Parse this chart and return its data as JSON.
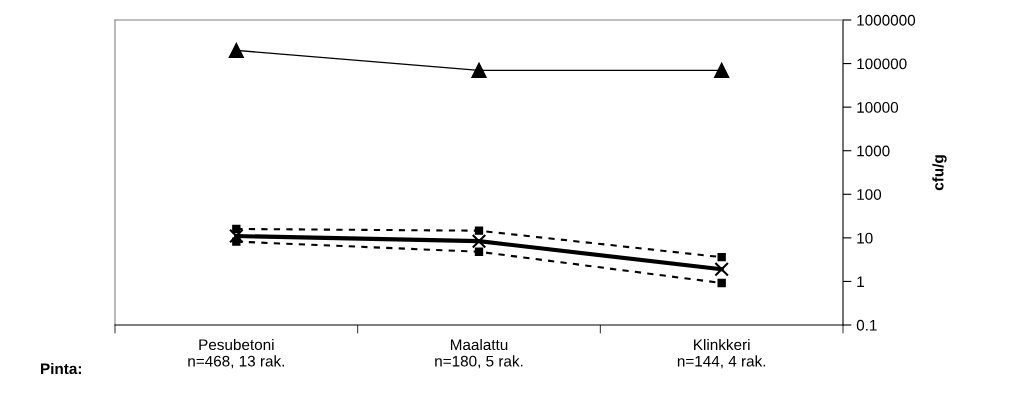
{
  "chart_data": {
    "type": "line",
    "ylabel": "cfu/g",
    "log": "y",
    "ylim": [
      0.1,
      1000000
    ],
    "yticks": [
      0.1,
      1,
      10,
      100,
      1000,
      10000,
      100000,
      1000000
    ],
    "grid": false,
    "legend": false,
    "categories": [
      "Pesubetoni\nn=468, 13 rak.",
      "Maalattu\nn=180, 5 rak.",
      "Klinkkeri\nn=144, 4 rak."
    ],
    "annotations": [
      "Pinta:"
    ],
    "series": [
      {
        "color": "#000000",
        "values": [
          200000,
          70000,
          70000
        ],
        "marker": "triangle",
        "line_style": "solid"
      },
      {
        "color": "#000000",
        "values": [
          11,
          8.4,
          1.9
        ],
        "marker": "cross",
        "line_style": "solid"
      },
      {
        "color": "#000000",
        "values": [
          16,
          14.6,
          3.6
        ],
        "marker": "square",
        "line_style": "dotted"
      },
      {
        "color": "#000000",
        "values": [
          8.2,
          4.8,
          0.92
        ],
        "marker": "square",
        "line_style": "dotted"
      }
    ]
  }
}
